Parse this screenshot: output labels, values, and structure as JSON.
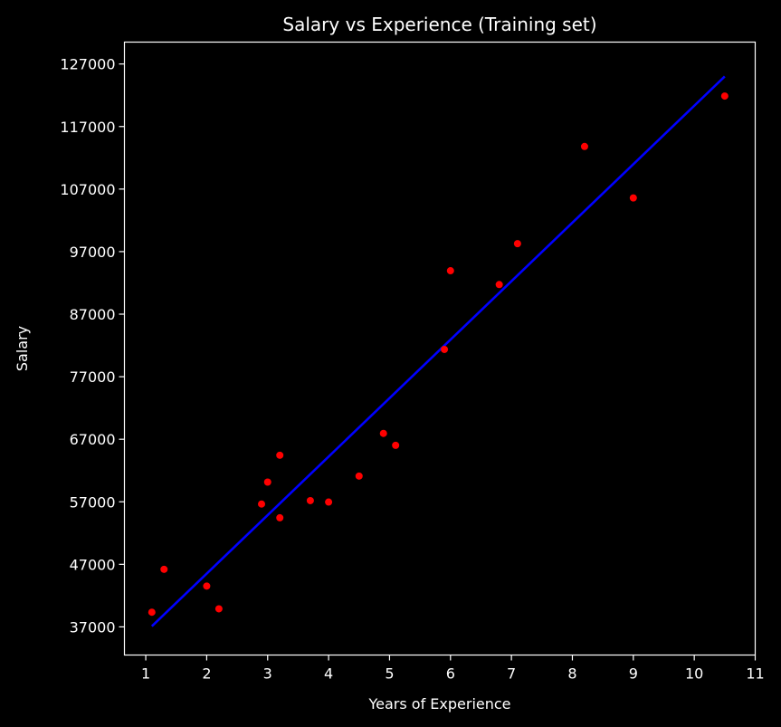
{
  "chart_data": {
    "type": "scatter",
    "title": "Salary vs Experience (Training set)",
    "xlabel": "Years of Experience",
    "ylabel": "Salary",
    "xlim": [
      0.65,
      11
    ],
    "ylim": [
      32500,
      130500
    ],
    "x_ticks": [
      1,
      2,
      3,
      4,
      5,
      6,
      7,
      8,
      9,
      10,
      11
    ],
    "y_ticks": [
      37000,
      47000,
      57000,
      67000,
      77000,
      87000,
      97000,
      107000,
      117000,
      127000
    ],
    "grid": false,
    "background_color": "#000000",
    "axis_color": "#ffffff",
    "series": [
      {
        "type": "scatter",
        "color": "#ff0000",
        "points": [
          [
            1.1,
            39343
          ],
          [
            1.3,
            46205
          ],
          [
            2.0,
            43525
          ],
          [
            2.2,
            39891
          ],
          [
            2.9,
            56642
          ],
          [
            3.0,
            60150
          ],
          [
            3.2,
            54445
          ],
          [
            3.2,
            64445
          ],
          [
            3.7,
            57189
          ],
          [
            4.0,
            56957
          ],
          [
            4.5,
            61111
          ],
          [
            4.9,
            67938
          ],
          [
            5.1,
            66029
          ],
          [
            5.9,
            81363
          ],
          [
            6.0,
            93940
          ],
          [
            6.8,
            91738
          ],
          [
            7.1,
            98273
          ],
          [
            8.2,
            113812
          ],
          [
            9.0,
            105582
          ],
          [
            10.5,
            121872
          ]
        ]
      },
      {
        "type": "line",
        "color": "#0000ff",
        "points": [
          [
            1.1,
            37100
          ],
          [
            10.5,
            125000
          ]
        ]
      }
    ]
  }
}
